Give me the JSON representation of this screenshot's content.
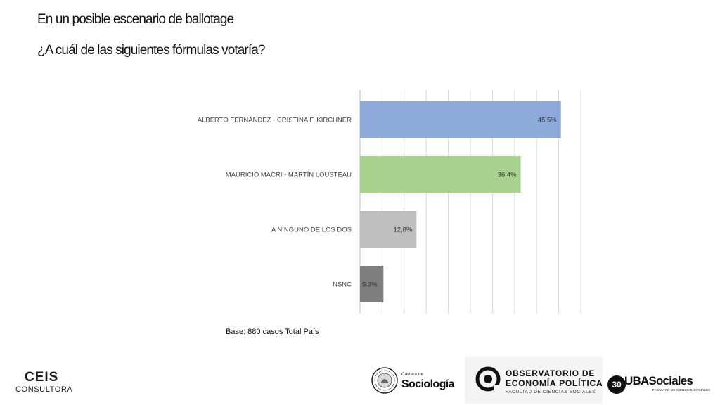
{
  "header": {
    "title": "En un posible escenario de ballotage",
    "question": "¿A cuál de las siguientes fórmulas votaría?"
  },
  "chart_data": {
    "type": "bar",
    "orientation": "horizontal",
    "categories": [
      "ALBERTO FERNÁNDEZ - CRISTINA F. KIRCHNER",
      "MAURICIO MACRI - MARTÍN LOUSTEAU",
      "A NINGUNO DE LOS DOS",
      "NSNC"
    ],
    "values": [
      45.5,
      36.4,
      12.8,
      5.3
    ],
    "value_labels": [
      "45,5%",
      "36,4%",
      "12,8%",
      "5,3%"
    ],
    "colors": [
      "#8eaadb",
      "#a9d18e",
      "#bfbfbf",
      "#7f7f7f"
    ],
    "xlim": [
      0,
      50
    ],
    "grid": "vertical",
    "gridline_step": 5,
    "title": "",
    "xlabel": "",
    "ylabel": "",
    "legend": "none"
  },
  "footer": {
    "base_note": "Base: 880 casos Total País",
    "ceis": {
      "name": "CEIS",
      "sub": "CONSULTORA"
    },
    "sociologia": {
      "small": "Carrera de",
      "big": "Sociología"
    },
    "observatorio": {
      "line1": "OBSERVATORIO DE",
      "line2": "ECONOMÍA POLÍTICA",
      "line3": "FACULTAD DE CIENCIAS SOCIALES"
    },
    "uba": {
      "badge": "30",
      "name": "UBASociales",
      "sub": "FACULTAD DE CIENCIAS SOCIALES"
    }
  }
}
